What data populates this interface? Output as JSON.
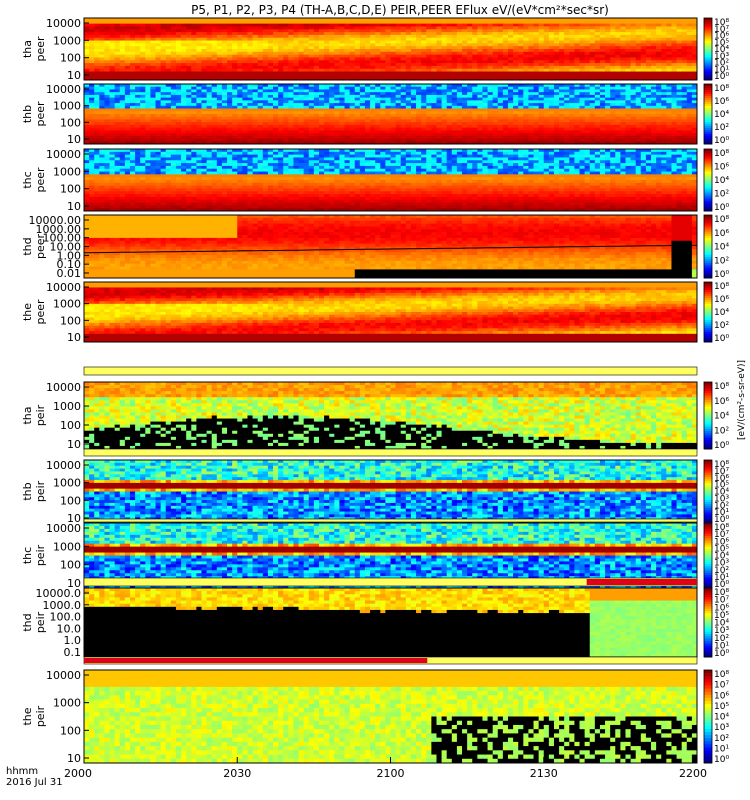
{
  "chart_data": {
    "type": "heatmap",
    "title": "P5, P1, P2, P3, P4 (TH-A,B,C,D,E) PEIR,PEER EFlux eV/(eV*cm²*sec*sr)",
    "colorbar_label": "[eV/(cm²-s-sr-eV)]",
    "x_ticks": [
      "2000",
      "2030",
      "2100",
      "2130",
      "2200"
    ],
    "x_footer": [
      "hhmm",
      "2016 Jul 31"
    ],
    "panels": [
      {
        "id": "tha_peer",
        "ylabel": [
          "tha",
          "peer"
        ],
        "ticks": [
          "10000",
          "1000",
          "100",
          "10"
        ],
        "cb": [
          "10⁸",
          "10⁷",
          "10⁶",
          "10⁵",
          "10⁴",
          "10³",
          "10²",
          "10¹",
          "10⁰"
        ],
        "style": "hot",
        "flag": null,
        "bar": "none"
      },
      {
        "id": "thb_peer",
        "ylabel": [
          "thb",
          "peer"
        ],
        "ticks": [
          "10000",
          "1000",
          "100",
          "10"
        ],
        "cb": [
          "10⁸",
          "10⁶",
          "10⁴",
          "10²",
          "10⁰"
        ],
        "style": "band_noise",
        "flag": null,
        "bar": "none"
      },
      {
        "id": "thc_peer",
        "ylabel": [
          "thc",
          "peer"
        ],
        "ticks": [
          "10000",
          "1000",
          "100",
          "10"
        ],
        "cb": [
          "10⁸",
          "10⁶",
          "10⁴",
          "10²",
          "10⁰"
        ],
        "style": "band_noise",
        "flag": null,
        "bar": "none"
      },
      {
        "id": "thd_peer",
        "ylabel": [
          "thd",
          "peer"
        ],
        "ticks": [
          "10000.00",
          "1000.00",
          "100.00",
          "10.00",
          "1.00",
          "0.10",
          "0.01"
        ],
        "cb": [
          "10⁸",
          "10⁶",
          "10⁴",
          "10²",
          "10⁰"
        ],
        "style": "thd_peer",
        "flag": null,
        "bar": "none"
      },
      {
        "id": "the_peer",
        "ylabel": [
          "the",
          "peer"
        ],
        "ticks": [
          "10000",
          "1000",
          "100",
          "10"
        ],
        "cb": [
          "10⁸",
          "10⁶",
          "10⁴",
          "10²",
          "10⁰"
        ],
        "style": "hot",
        "flag": null,
        "bar": "white"
      },
      {
        "id": "tha_peir",
        "ylabel": [
          "tha",
          "peir"
        ],
        "ticks": [
          "10000",
          "1000",
          "100",
          "10"
        ],
        "cb": [
          "10⁸",
          "10⁶",
          "10⁴",
          "10²",
          "10⁰"
        ],
        "style": "ion_black",
        "flag": null,
        "bar": "white"
      },
      {
        "id": "thb_peir",
        "ylabel": [
          "thb",
          "peir"
        ],
        "ticks": [
          "10000",
          "1000",
          "100",
          "10"
        ],
        "cb": [
          "10⁸",
          "10⁷",
          "10⁶",
          "10⁵",
          "10⁴",
          "10³",
          "10²",
          "10¹",
          "10⁰"
        ],
        "style": "band_noise_ion",
        "flag": null,
        "bar": "white"
      },
      {
        "id": "thc_peir",
        "ylabel": [
          "thc",
          "peir"
        ],
        "ticks": [
          "10000",
          "1000",
          "100",
          "10"
        ],
        "cb": [
          "10⁸",
          "10⁷",
          "10⁶",
          "10⁵",
          "10⁴",
          "10³",
          "10²",
          "10¹",
          "10⁰"
        ],
        "style": "band_noise_ion",
        "flag": null,
        "bar": "white"
      },
      {
        "id": "thd_peir",
        "ylabel": [
          "thd",
          "peir"
        ],
        "ticks": [
          "10000.0",
          "1000.0",
          "100.0",
          "10.0",
          "1.0",
          "0.1"
        ],
        "cb": [
          "10⁸",
          "10⁷",
          "10⁶",
          "10⁵",
          "10⁴",
          "10³",
          "10²",
          "10¹",
          "10⁰"
        ],
        "style": "thd_peir",
        "flag": {
          "from": 0.82,
          "to": 1.0
        },
        "bar": "none"
      },
      {
        "id": "the_peir",
        "ylabel": [
          "the",
          "peir"
        ],
        "ticks": [
          "10000",
          "1000",
          "100",
          "10"
        ],
        "cb": [
          "10⁸",
          "10⁷",
          "10⁶",
          "10⁵",
          "10⁴",
          "10³",
          "10²",
          "10¹",
          "10⁰"
        ],
        "style": "the_peir",
        "flag": {
          "from": 0.0,
          "to": 0.56
        },
        "bar": "none"
      }
    ]
  }
}
